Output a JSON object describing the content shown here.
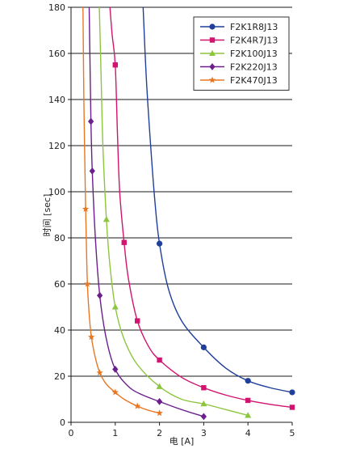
{
  "chart_data": {
    "type": "line",
    "title": "",
    "xlabel": "电 [A]",
    "ylabel": "时间 [sec]",
    "xlim": [
      0,
      5
    ],
    "ylim": [
      0,
      180
    ],
    "xticks": [
      0,
      1,
      2,
      3,
      4,
      5
    ],
    "yticks": [
      0,
      20,
      40,
      60,
      80,
      100,
      120,
      140,
      160,
      180
    ],
    "grid": "horizontal",
    "legend": "top-right",
    "series": [
      {
        "name": "F2K1R8J13",
        "color": "#1f3f9a",
        "marker": "circle",
        "points": [
          [
            2,
            77.5
          ],
          [
            3,
            32.5
          ],
          [
            4,
            18
          ],
          [
            5,
            13
          ]
        ],
        "curve": [
          [
            1.63,
            180
          ],
          [
            1.7,
            150
          ],
          [
            1.8,
            120
          ],
          [
            1.9,
            95
          ],
          [
            2,
            77.5
          ],
          [
            2.2,
            58
          ],
          [
            2.5,
            44
          ],
          [
            3,
            32.5
          ],
          [
            3.5,
            23.5
          ],
          [
            4,
            18
          ],
          [
            4.5,
            15
          ],
          [
            5,
            13
          ]
        ]
      },
      {
        "name": "F2K4R7J13",
        "color": "#d0146f",
        "marker": "square",
        "points": [
          [
            1,
            155
          ],
          [
            1.2,
            78
          ],
          [
            1.5,
            44
          ],
          [
            2,
            27
          ],
          [
            3,
            15
          ],
          [
            4,
            9.5
          ],
          [
            5,
            6.5
          ]
        ],
        "curve": [
          [
            0.88,
            180
          ],
          [
            0.93,
            168
          ],
          [
            1,
            155
          ],
          [
            1.05,
            125
          ],
          [
            1.1,
            100
          ],
          [
            1.2,
            78
          ],
          [
            1.3,
            62
          ],
          [
            1.5,
            44
          ],
          [
            1.75,
            33
          ],
          [
            2,
            27
          ],
          [
            2.5,
            19.5
          ],
          [
            3,
            15
          ],
          [
            3.5,
            11.8
          ],
          [
            4,
            9.5
          ],
          [
            4.5,
            7.8
          ],
          [
            5,
            6.5
          ]
        ]
      },
      {
        "name": "F2K100J13",
        "color": "#8cc63f",
        "marker": "triangle",
        "points": [
          [
            0.8,
            88
          ],
          [
            1,
            50
          ],
          [
            2,
            15.5
          ],
          [
            3,
            8
          ],
          [
            4,
            3
          ]
        ],
        "curve": [
          [
            0.64,
            180
          ],
          [
            0.68,
            150
          ],
          [
            0.72,
            120
          ],
          [
            0.8,
            88
          ],
          [
            0.88,
            68
          ],
          [
            1,
            50
          ],
          [
            1.2,
            36
          ],
          [
            1.5,
            25
          ],
          [
            2,
            15.5
          ],
          [
            2.5,
            10
          ],
          [
            3,
            8
          ],
          [
            3.5,
            5.5
          ],
          [
            4,
            3
          ]
        ]
      },
      {
        "name": "F2K220J13",
        "color": "#6a1f8c",
        "marker": "diamond",
        "points": [
          [
            0.45,
            130.5
          ],
          [
            0.48,
            109
          ],
          [
            0.65,
            55
          ],
          [
            1,
            23
          ],
          [
            2,
            9
          ],
          [
            3,
            2.5
          ]
        ],
        "curve": [
          [
            0.41,
            180
          ],
          [
            0.43,
            155
          ],
          [
            0.45,
            130.5
          ],
          [
            0.48,
            109
          ],
          [
            0.55,
            80
          ],
          [
            0.65,
            55
          ],
          [
            0.8,
            36
          ],
          [
            1,
            23
          ],
          [
            1.3,
            15.5
          ],
          [
            1.6,
            12
          ],
          [
            2,
            9
          ],
          [
            2.5,
            5.5
          ],
          [
            3,
            2.5
          ]
        ]
      },
      {
        "name": "F2K470J13",
        "color": "#e87722",
        "marker": "star",
        "points": [
          [
            0.33,
            92.5
          ],
          [
            0.37,
            60
          ],
          [
            0.46,
            37
          ],
          [
            0.65,
            21.5
          ],
          [
            1,
            13
          ],
          [
            1.5,
            7
          ],
          [
            2,
            4
          ]
        ],
        "curve": [
          [
            0.27,
            180
          ],
          [
            0.29,
            140
          ],
          [
            0.31,
            115
          ],
          [
            0.33,
            92.5
          ],
          [
            0.35,
            75
          ],
          [
            0.37,
            60
          ],
          [
            0.41,
            47
          ],
          [
            0.46,
            37
          ],
          [
            0.55,
            28
          ],
          [
            0.65,
            21.5
          ],
          [
            0.8,
            16.5
          ],
          [
            1,
            13
          ],
          [
            1.2,
            10
          ],
          [
            1.5,
            7
          ],
          [
            1.75,
            5.2
          ],
          [
            2,
            4
          ]
        ]
      }
    ]
  }
}
